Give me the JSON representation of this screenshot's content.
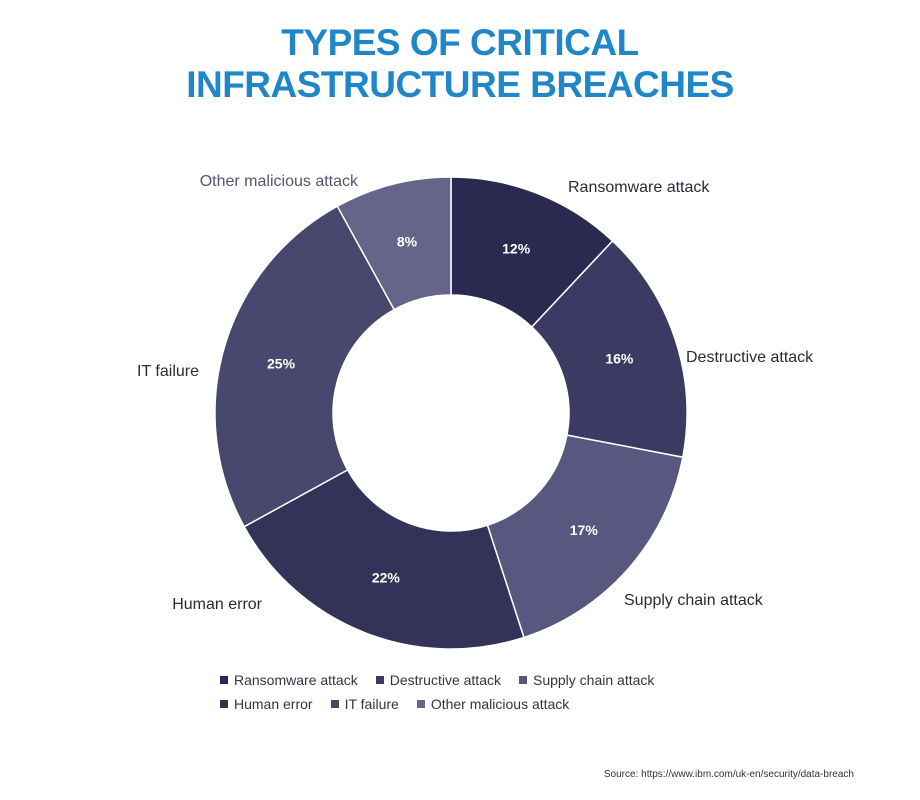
{
  "chart_data": {
    "type": "pie",
    "donut": true,
    "title_lines": [
      "TYPES OF CRITICAL",
      "INFRASTRUCTURE BREACHES"
    ],
    "categories": [
      "Ransomware attack",
      "Destructive attack",
      "Supply chain attack",
      "Human error",
      "IT failure",
      "Other malicious attack"
    ],
    "values": [
      12,
      16,
      17,
      22,
      25,
      8
    ],
    "value_labels": [
      "12%",
      "16%",
      "17%",
      "22%",
      "25%",
      "8%"
    ],
    "colors": [
      "#2a2950",
      "#3b3a62",
      "#575780",
      "#33335a",
      "#48476d",
      "#65658a"
    ],
    "legend_rows": [
      [
        "Ransomware attack",
        "Destructive attack",
        "Supply chain attack"
      ],
      [
        "Human error",
        "IT failure",
        "Other malicious attack"
      ]
    ],
    "legend_position": "bottom"
  },
  "source": "Source: https://www.ibm.com/uk-en/security/data-breach"
}
